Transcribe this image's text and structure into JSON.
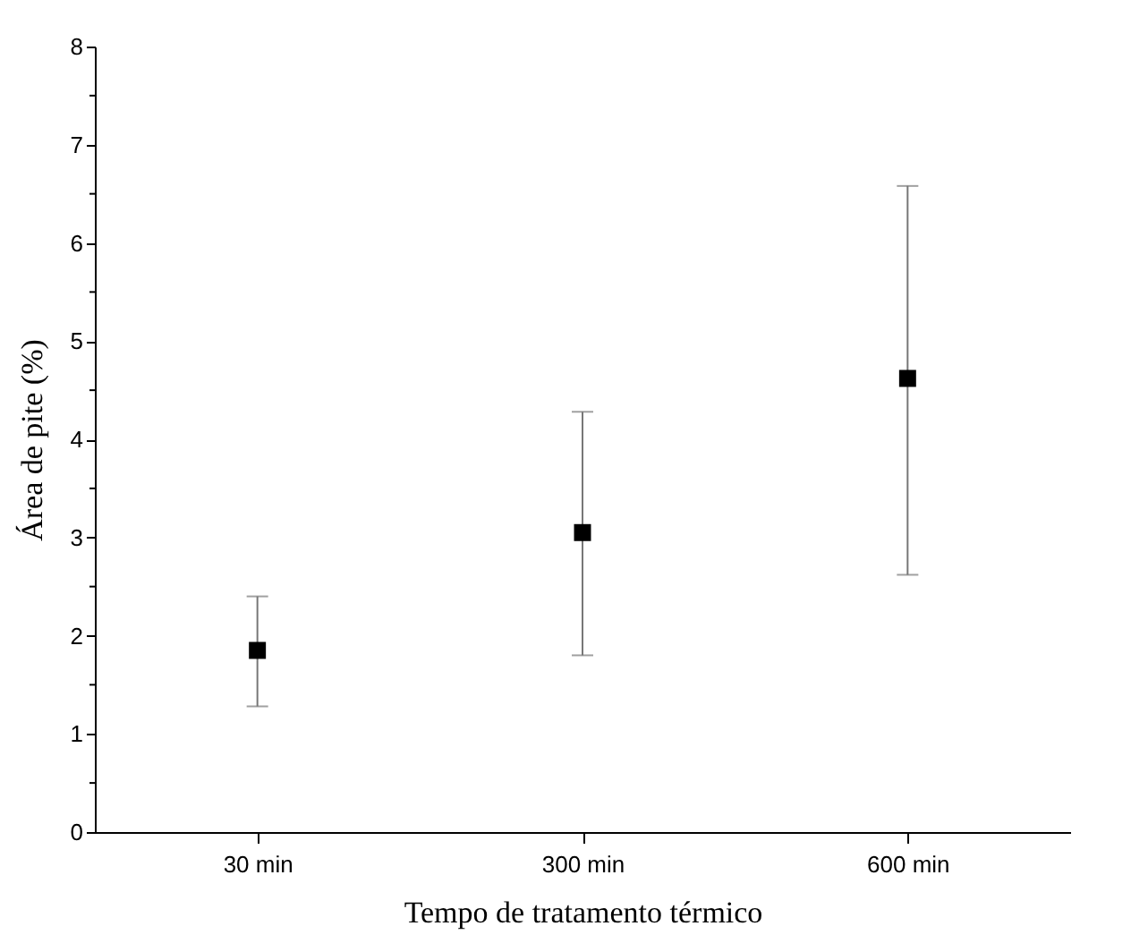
{
  "chart_data": {
    "type": "scatter",
    "xlabel": "Tempo de tratamento térmico",
    "ylabel": "Área de pite (%)",
    "categories": [
      "30 min",
      "300 min",
      "600 min"
    ],
    "series": [
      {
        "color": "#000000",
        "values": [
          1.85,
          3.05,
          4.62
        ],
        "errors": [
          [
            1.28,
            2.4
          ],
          [
            1.8,
            4.28
          ],
          [
            2.62,
            6.58
          ]
        ]
      }
    ],
    "marker": "square",
    "grid": false,
    "legend": false,
    "ylim": [
      0,
      8
    ],
    "yticks": [
      0,
      {
        "value": 0.5,
        "label": null
      },
      1,
      {
        "value": 1.5,
        "label": null
      },
      2,
      {
        "value": 2.5,
        "label": null
      },
      3,
      {
        "value": 3.5,
        "label": null
      },
      4,
      {
        "value": 4.5,
        "label": null
      },
      5,
      {
        "value": 5.5,
        "label": null
      },
      6,
      {
        "value": 6.5,
        "label": null
      },
      7,
      {
        "value": 7.5,
        "label": null
      },
      8
    ]
  }
}
